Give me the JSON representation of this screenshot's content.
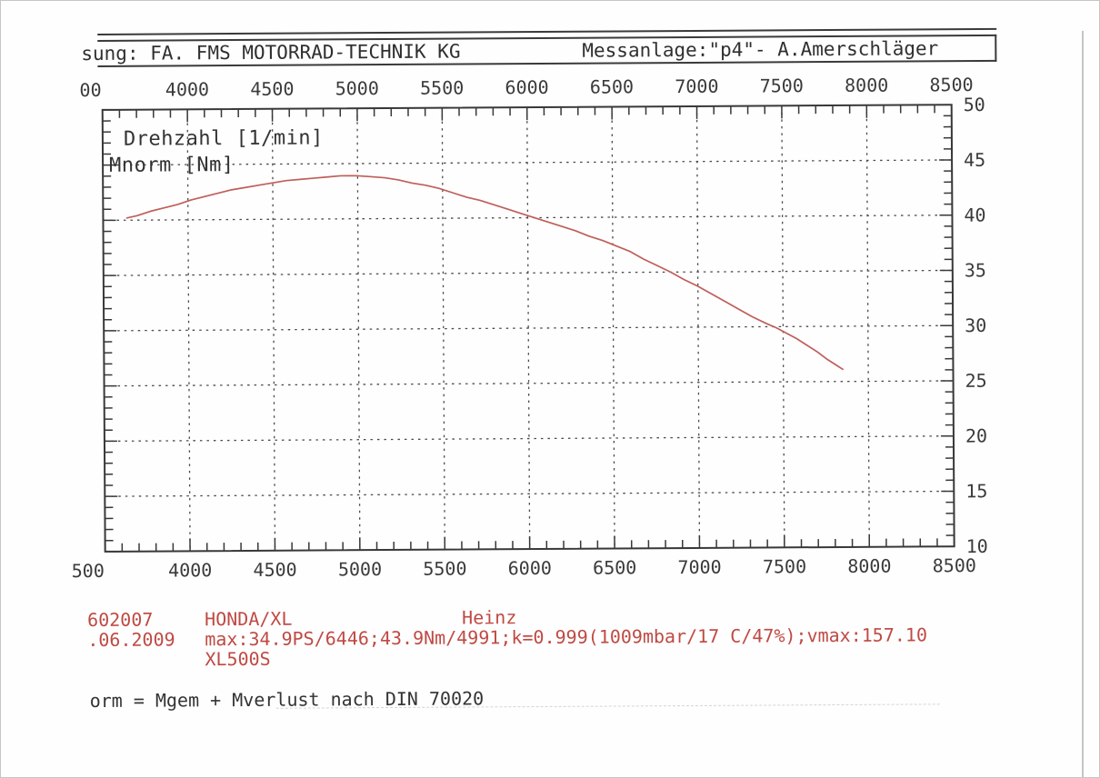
{
  "header": {
    "left": "sung: FA. FMS MOTORRAD-TECHNIK KG",
    "right": "Messanlage:\"p4\"- A.Amerschläger"
  },
  "plot_labels": {
    "x_axis_name": "Drehzahl [1/min]",
    "y_axis_name": "Mnorm [Nm]"
  },
  "info_block": {
    "measurement_id": "602007",
    "measurement_date": ".06.2009",
    "vehicle_model": "HONDA/XL",
    "operator_name": "Heinz",
    "results_line": "max:34.9PS/6446;43.9Nm/4991;k=0.999(1009mbar/17 C/47%);vmax:157.10",
    "vehicle_variant": "XL500S"
  },
  "formula_note": "orm = Mgem + Mverlust nach DIN 70020",
  "colors": {
    "ink": "#3a3a3a",
    "frame": "#383838",
    "grid": "#4a4a4a",
    "red_text": "#bf4a43",
    "curve": "#bf5f5a",
    "paper": "#fefefe"
  },
  "chart_data": {
    "type": "line",
    "title": "",
    "xlabel": "Drehzahl [1/min]",
    "ylabel": "Mnorm [Nm]",
    "xlim": [
      3500,
      8500
    ],
    "ylim": [
      10,
      50
    ],
    "x_tick_step": 500,
    "x_minor_step": 100,
    "y_tick_step": 5,
    "y_minor_step": 1,
    "grid": "dashed",
    "legend_position": "none",
    "x_tick_values": [
      3500,
      4000,
      4500,
      5000,
      5500,
      6000,
      6500,
      7000,
      7500,
      8000,
      8500
    ],
    "x_tick_labels_top": [
      "00",
      "4000",
      "4500",
      "5000",
      "5500",
      "6000",
      "6500",
      "7000",
      "7500",
      "8000",
      "8500"
    ],
    "x_tick_labels_bottom": [
      "500",
      "4000",
      "4500",
      "5000",
      "5500",
      "6000",
      "6500",
      "7000",
      "7500",
      "8000",
      "8500"
    ],
    "y_tick_values": [
      10,
      15,
      20,
      25,
      30,
      35,
      40,
      45,
      50
    ],
    "y_tick_labels_right": [
      "10",
      "15",
      "20",
      "25",
      "30",
      "35",
      "40",
      "45",
      "50"
    ],
    "series": [
      {
        "name": "Mnorm [Nm]",
        "color": "#bf5f5a",
        "peak_note": "43.9Nm/4991",
        "points": [
          [
            3640,
            40.2
          ],
          [
            3700,
            40.4
          ],
          [
            3780,
            40.8
          ],
          [
            3860,
            41.1
          ],
          [
            3940,
            41.4
          ],
          [
            4020,
            41.8
          ],
          [
            4100,
            42.1
          ],
          [
            4180,
            42.4
          ],
          [
            4260,
            42.7
          ],
          [
            4340,
            42.9
          ],
          [
            4420,
            43.1
          ],
          [
            4500,
            43.3
          ],
          [
            4580,
            43.5
          ],
          [
            4660,
            43.6
          ],
          [
            4740,
            43.7
          ],
          [
            4820,
            43.8
          ],
          [
            4900,
            43.9
          ],
          [
            4991,
            43.9
          ],
          [
            5080,
            43.8
          ],
          [
            5160,
            43.7
          ],
          [
            5240,
            43.5
          ],
          [
            5320,
            43.2
          ],
          [
            5400,
            43.0
          ],
          [
            5480,
            42.7
          ],
          [
            5560,
            42.3
          ],
          [
            5640,
            41.9
          ],
          [
            5720,
            41.6
          ],
          [
            5800,
            41.2
          ],
          [
            5880,
            40.8
          ],
          [
            5960,
            40.4
          ],
          [
            6040,
            40.0
          ],
          [
            6120,
            39.6
          ],
          [
            6200,
            39.2
          ],
          [
            6280,
            38.8
          ],
          [
            6360,
            38.3
          ],
          [
            6440,
            37.9
          ],
          [
            6520,
            37.4
          ],
          [
            6600,
            36.9
          ],
          [
            6680,
            36.2
          ],
          [
            6760,
            35.6
          ],
          [
            6840,
            35.0
          ],
          [
            6920,
            34.3
          ],
          [
            7000,
            33.7
          ],
          [
            7080,
            33.0
          ],
          [
            7160,
            32.3
          ],
          [
            7240,
            31.6
          ],
          [
            7320,
            30.9
          ],
          [
            7400,
            30.3
          ],
          [
            7460,
            29.9
          ],
          [
            7520,
            29.4
          ],
          [
            7580,
            28.9
          ],
          [
            7640,
            28.3
          ],
          [
            7700,
            27.7
          ],
          [
            7760,
            27.0
          ],
          [
            7810,
            26.5
          ],
          [
            7850,
            26.1
          ]
        ]
      }
    ]
  }
}
